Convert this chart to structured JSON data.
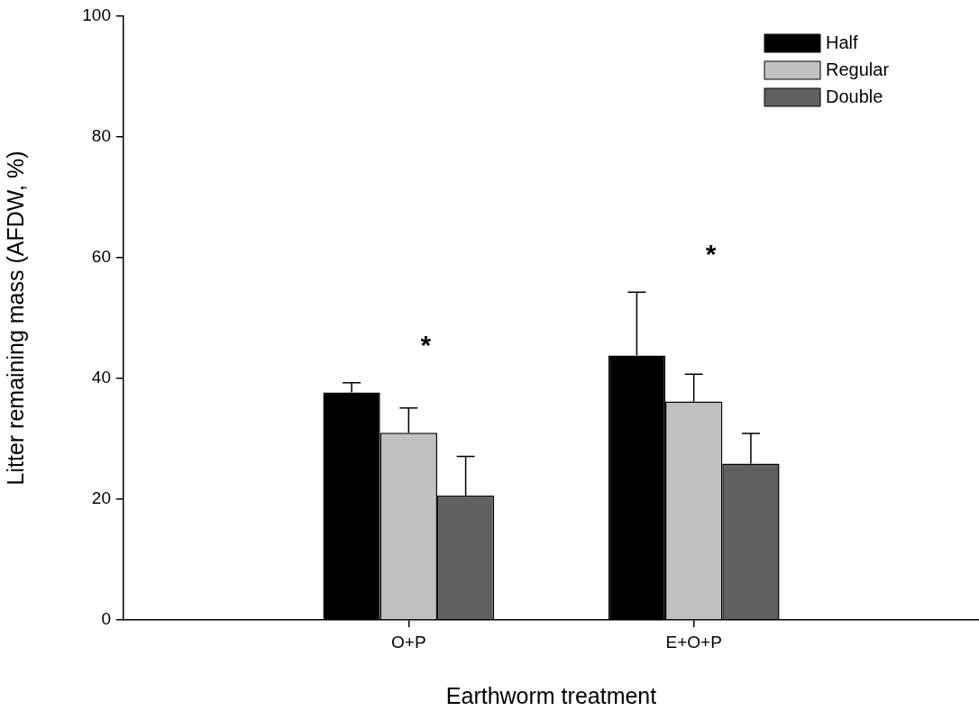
{
  "chart_data": {
    "type": "bar",
    "xlabel": "Earthworm treatment",
    "ylabel": "Litter remaining mass (AFDW, %)",
    "categories": [
      "O+P",
      "E+O+P"
    ],
    "series": [
      {
        "name": "Half",
        "color": "#000000",
        "values": [
          37.7,
          43.8
        ],
        "errors": [
          1.6,
          10.5
        ]
      },
      {
        "name": "Regular",
        "color": "#c0c0c0",
        "values": [
          31.0,
          36.2
        ],
        "errors": [
          4.1,
          4.5
        ]
      },
      {
        "name": "Double",
        "color": "#606060",
        "values": [
          20.6,
          25.9
        ],
        "errors": [
          6.5,
          5.0
        ]
      }
    ],
    "ylim": [
      0,
      100
    ],
    "yticks": [
      0,
      20,
      40,
      60,
      80,
      100
    ],
    "grid": false,
    "legend": "top right",
    "annotations": [
      "*",
      "*"
    ]
  }
}
